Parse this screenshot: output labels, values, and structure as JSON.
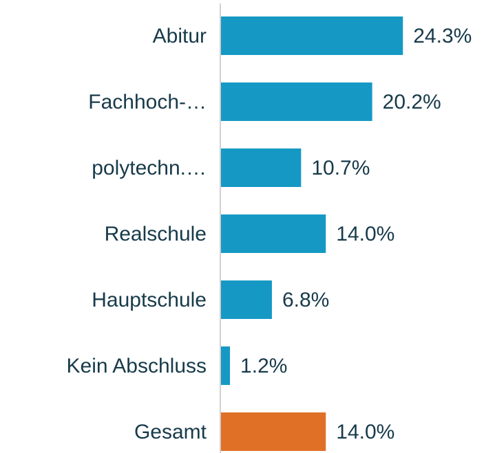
{
  "chart_data": {
    "type": "barh",
    "categories": [
      "Abitur",
      "Fachhoch-…",
      "polytechn.…",
      "Realschule",
      "Hauptschule",
      "Kein Abschluss",
      "Gesamt"
    ],
    "values": [
      24.3,
      20.2,
      10.7,
      14.0,
      6.8,
      1.2,
      14.0
    ],
    "value_labels": [
      "24.3%",
      "20.2%",
      "10.7%",
      "14.0%",
      "6.8%",
      "1.2%",
      "14.0%"
    ],
    "colors": [
      "#1599c4",
      "#1599c4",
      "#1599c4",
      "#1599c4",
      "#1599c4",
      "#1599c4",
      "#e07026"
    ],
    "xlim": [
      0,
      36.6
    ]
  }
}
